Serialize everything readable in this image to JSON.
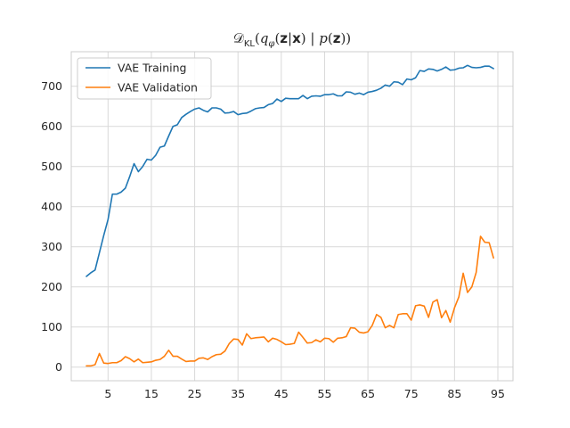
{
  "chart_data": {
    "type": "line",
    "title": "𝒟KL(qφ(z|x) | p(z))",
    "xlabel": "",
    "ylabel": "",
    "xlim": [
      -3.5,
      98.5
    ],
    "ylim": [
      -34,
      786
    ],
    "xticks": [
      5,
      15,
      25,
      35,
      45,
      55,
      65,
      75,
      85,
      95
    ],
    "yticks": [
      0,
      100,
      200,
      300,
      400,
      500,
      600,
      700
    ],
    "grid": true,
    "legend_position": "top-left",
    "x": [
      0,
      1,
      2,
      3,
      4,
      5,
      6,
      7,
      8,
      9,
      10,
      11,
      12,
      13,
      14,
      15,
      16,
      17,
      18,
      19,
      20,
      21,
      22,
      23,
      24,
      25,
      26,
      27,
      28,
      29,
      30,
      31,
      32,
      33,
      34,
      35,
      36,
      37,
      38,
      39,
      40,
      41,
      42,
      43,
      44,
      45,
      46,
      47,
      48,
      49,
      50,
      51,
      52,
      53,
      54,
      55,
      56,
      57,
      58,
      59,
      60,
      61,
      62,
      63,
      64,
      65,
      66,
      67,
      68,
      69,
      70,
      71,
      72,
      73,
      74,
      75,
      76,
      77,
      78,
      79,
      80,
      81,
      82,
      83,
      84,
      85,
      86,
      87,
      88,
      89,
      90,
      91,
      92,
      93,
      94
    ],
    "series": [
      {
        "name": "VAE Training",
        "color": "#1f77b4",
        "values": [
          226,
          235,
          242,
          285,
          328,
          368,
          431,
          431,
          436,
          446,
          475,
          507,
          487,
          500,
          518,
          516,
          528,
          548,
          551,
          576,
          600,
          604,
          622,
          630,
          637,
          643,
          646,
          640,
          636,
          646,
          646,
          643,
          633,
          634,
          637,
          629,
          632,
          633,
          638,
          644,
          646,
          647,
          654,
          657,
          668,
          662,
          670,
          669,
          669,
          669,
          677,
          669,
          675,
          676,
          675,
          679,
          679,
          681,
          676,
          676,
          686,
          685,
          680,
          683,
          679,
          685,
          687,
          690,
          695,
          703,
          700,
          711,
          710,
          704,
          718,
          716,
          721,
          739,
          737,
          743,
          742,
          738,
          742,
          748,
          740,
          741,
          745,
          746,
          752,
          747,
          746,
          747,
          750,
          750,
          744
        ]
      },
      {
        "name": "VAE Validation",
        "color": "#ff7f0e",
        "values": [
          3,
          3,
          6,
          34,
          10,
          9,
          11,
          11,
          16,
          26,
          21,
          13,
          20,
          11,
          12,
          13,
          17,
          19,
          27,
          42,
          27,
          27,
          20,
          14,
          15,
          15,
          22,
          23,
          19,
          26,
          31,
          32,
          40,
          59,
          70,
          69,
          55,
          83,
          71,
          73,
          74,
          75,
          63,
          72,
          69,
          63,
          56,
          57,
          59,
          87,
          74,
          60,
          61,
          68,
          63,
          72,
          71,
          62,
          72,
          73,
          76,
          98,
          97,
          87,
          85,
          88,
          104,
          131,
          124,
          98,
          104,
          98,
          131,
          133,
          133,
          117,
          153,
          155,
          152,
          124,
          162,
          168,
          123,
          141,
          112,
          148,
          175,
          234,
          186,
          200,
          236,
          326,
          311,
          310,
          272
        ]
      }
    ]
  }
}
